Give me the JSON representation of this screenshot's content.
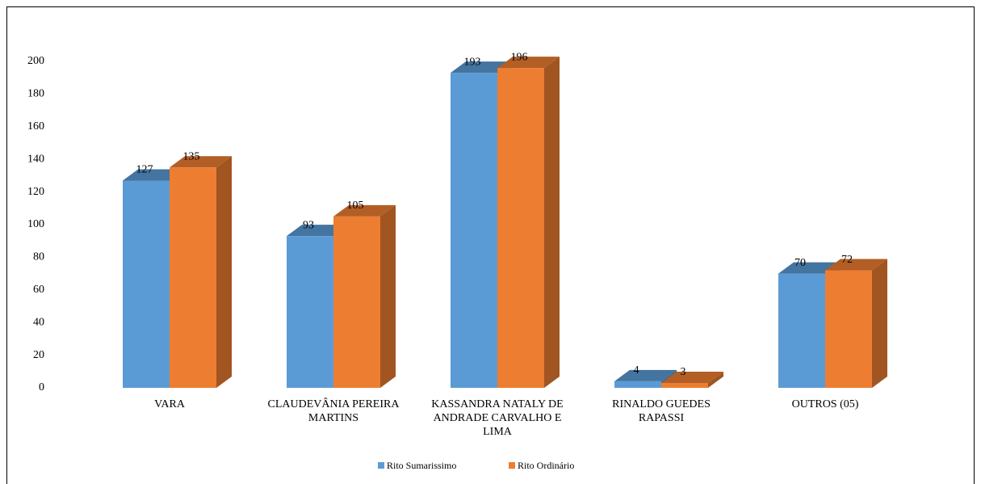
{
  "chart_data": {
    "type": "bar3d",
    "categories": [
      "VARA",
      "CLAUDEVÂNIA PEREIRA MARTINS",
      "KASSANDRA NATALY DE ANDRADE CARVALHO E LIMA",
      "RINALDO GUEDES RAPASSI",
      "OUTROS (05)"
    ],
    "series": [
      {
        "name": "Rito Sumarissimo",
        "color": "#5b9bd5",
        "values": [
          127,
          93,
          193,
          4,
          70
        ]
      },
      {
        "name": "Rito Ordinário",
        "color": "#ed7d31",
        "values": [
          135,
          105,
          196,
          3,
          72
        ]
      }
    ],
    "ylim": [
      0,
      200
    ],
    "yticks": [
      0,
      20,
      40,
      60,
      80,
      100,
      120,
      140,
      160,
      180,
      200
    ],
    "grid": false,
    "legend": "bottom"
  }
}
